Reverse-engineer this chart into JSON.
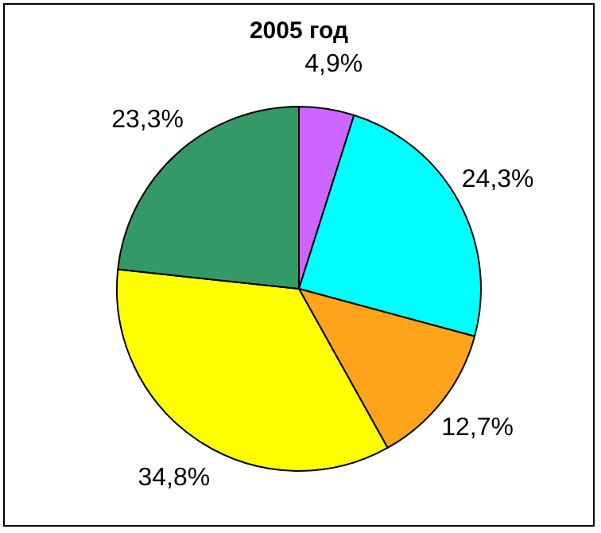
{
  "chart_data": {
    "type": "pie",
    "title": "2005 год",
    "categories": [
      null,
      null,
      null,
      null,
      null
    ],
    "values": [
      4.9,
      24.3,
      12.7,
      34.8,
      23.3
    ],
    "colors": [
      "#cc66ff",
      "#00ffff",
      "#ffa31a",
      "#ffff00",
      "#339966"
    ],
    "value_labels": [
      "4,9%",
      "24,3%",
      "12,7%",
      "34,8%",
      "23,3%"
    ],
    "legend": false
  }
}
